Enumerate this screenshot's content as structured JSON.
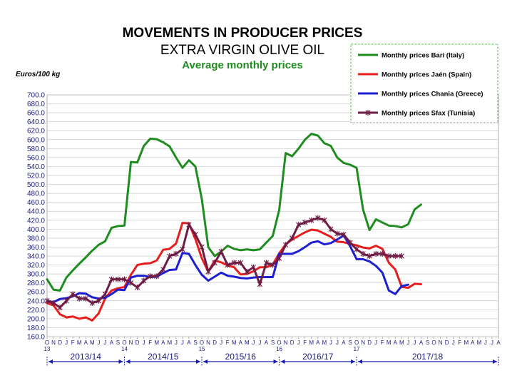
{
  "chart_data": {
    "type": "line",
    "title": "MOVEMENTS IN PRODUCER PRICES",
    "subtitle": "EXTRA VIRGIN OLIVE OIL",
    "subtitle2": "Average monthly prices",
    "ylabel": "Euros/100 kg",
    "ylim": [
      160,
      700
    ],
    "ystep": 20,
    "grid": true,
    "legend_position": "top-right",
    "x_labels": [
      "O",
      "N",
      "D",
      "J",
      "F",
      "M",
      "A",
      "M",
      "J",
      "J",
      "A",
      "S",
      "O",
      "N",
      "D",
      "J",
      "F",
      "M",
      "A",
      "M",
      "J",
      "J",
      "A",
      "S",
      "O",
      "N",
      "D",
      "J",
      "F",
      "M",
      "A",
      "M",
      "J",
      "J",
      "A",
      "S",
      "O",
      "N",
      "D",
      "J",
      "F",
      "M",
      "A",
      "M",
      "J",
      "J",
      "A",
      "S",
      "O",
      "N",
      "D",
      "J",
      "F",
      "M",
      "A",
      "M",
      "J",
      "J",
      "A",
      "S",
      "O",
      "N",
      "D",
      "J",
      "F",
      "M",
      "A",
      "M",
      "J",
      "J",
      "A"
    ],
    "year_labels": [
      {
        "index": 0,
        "label": "13"
      },
      {
        "index": 12,
        "label": "14"
      },
      {
        "index": 24,
        "label": "15"
      },
      {
        "index": 36,
        "label": "16"
      },
      {
        "index": 48,
        "label": "17"
      }
    ],
    "seasons": [
      "2013/14",
      "2014/15",
      "2015/16",
      "2016/17",
      "2017/18"
    ],
    "series": [
      {
        "name": "Monthly prices Bari (Italy)",
        "color": "#1e8c1e",
        "marker": "none",
        "values": [
          288,
          265,
          263,
          292,
          308,
          323,
          337,
          352,
          365,
          373,
          403,
          407,
          408,
          550,
          549,
          586,
          602,
          601,
          594,
          585,
          560,
          537,
          554,
          540,
          467,
          360,
          340,
          350,
          363,
          356,
          353,
          355,
          353,
          355,
          370,
          385,
          443,
          570,
          563,
          580,
          600,
          613,
          609,
          592,
          586,
          560,
          548,
          544,
          537,
          444,
          398,
          422,
          415,
          408,
          407,
          404,
          411,
          444,
          455
        ]
      },
      {
        "name": "Monthly prices Jaén (Spain)",
        "color": "#e81e1e",
        "marker": "none",
        "values": [
          235,
          230,
          210,
          203,
          205,
          200,
          203,
          196,
          212,
          245,
          263,
          268,
          271,
          298,
          320,
          323,
          324,
          330,
          354,
          356,
          368,
          414,
          413,
          378,
          335,
          305,
          330,
          326,
          319,
          315,
          299,
          300,
          306,
          315,
          315,
          321,
          346,
          366,
          377,
          385,
          393,
          399,
          397,
          390,
          383,
          372,
          371,
          367,
          364,
          359,
          357,
          363,
          356,
          325,
          310,
          271,
          269,
          278,
          277
        ]
      },
      {
        "name": "Monthly prices Chania (Greece)",
        "color": "#1e1ed2",
        "marker": "none",
        "values": [
          240,
          237,
          244,
          246,
          250,
          257,
          256,
          248,
          245,
          247,
          255,
          265,
          264,
          292,
          296,
          296,
          293,
          294,
          302,
          309,
          310,
          347,
          345,
          320,
          298,
          285,
          294,
          303,
          296,
          294,
          291,
          290,
          292,
          293,
          293,
          293,
          345,
          345,
          345,
          351,
          360,
          370,
          373,
          366,
          369,
          377,
          386,
          362,
          333,
          333,
          328,
          318,
          303,
          263,
          255,
          273,
          276
        ]
      },
      {
        "name": "Monthly prices Sfax (Tunisia)",
        "color": "#6e1e46",
        "marker": "star",
        "values": [
          240,
          235,
          225,
          240,
          255,
          245,
          245,
          235,
          240,
          255,
          288,
          288,
          288,
          280,
          270,
          285,
          295,
          295,
          310,
          340,
          345,
          355,
          410,
          388,
          360,
          305,
          325,
          350,
          320,
          325,
          325,
          305,
          315,
          277,
          325,
          320,
          335,
          365,
          380,
          410,
          415,
          420,
          425,
          420,
          400,
          390,
          388,
          370,
          355,
          345,
          340,
          345,
          345,
          340,
          340,
          340
        ]
      }
    ]
  }
}
